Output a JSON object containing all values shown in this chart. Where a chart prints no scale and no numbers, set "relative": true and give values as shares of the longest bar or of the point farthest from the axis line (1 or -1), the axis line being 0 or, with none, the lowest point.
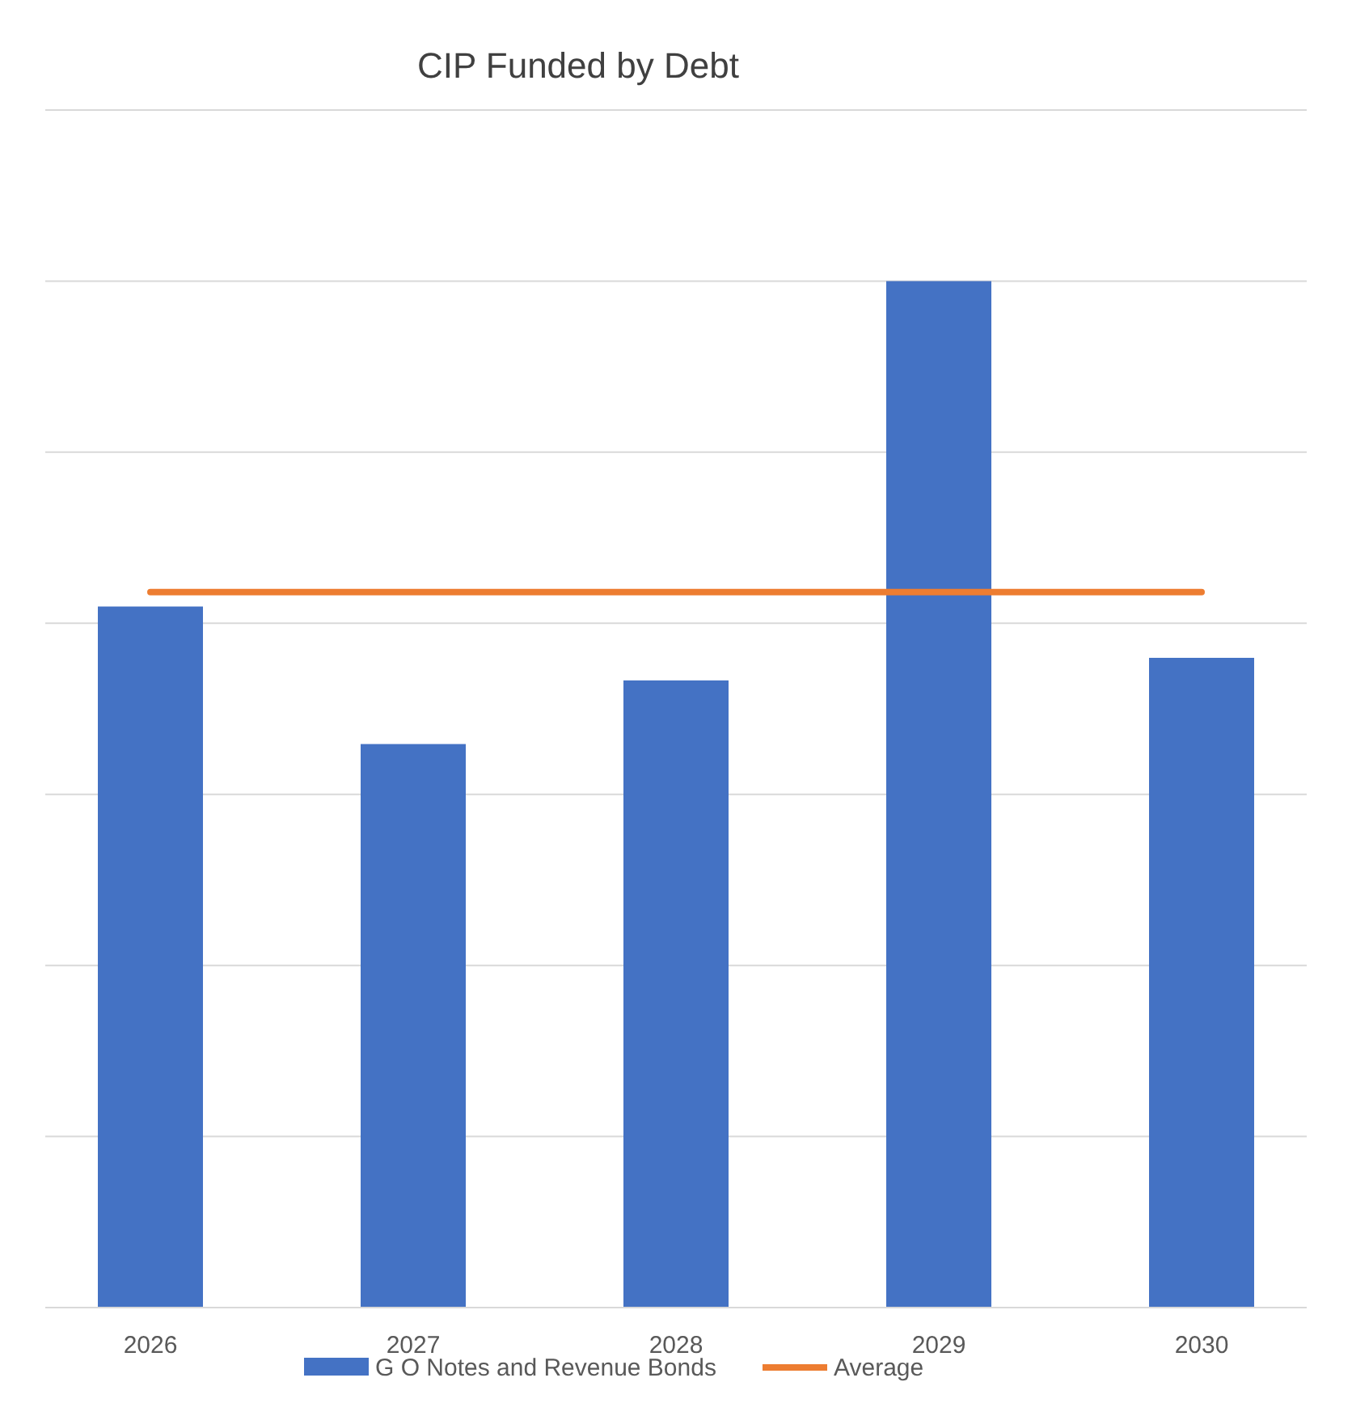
{
  "chart_data": {
    "type": "bar",
    "title": "CIP Funded by Debt",
    "relative": true,
    "grid": "y",
    "legend": "bottom",
    "categories": [
      "2026",
      "2027",
      "2028",
      "2029",
      "2030"
    ],
    "series": [
      {
        "name": "G O Notes and Revenue Bonds",
        "color": "#4472c4",
        "values": [
          0.683,
          0.549,
          0.611,
          1,
          0.633
        ]
      },
      {
        "name": "Average",
        "type": "line",
        "color": "#ed7d31",
        "values": [
          0.697,
          0.697,
          0.697,
          0.697,
          0.697
        ]
      }
    ]
  }
}
